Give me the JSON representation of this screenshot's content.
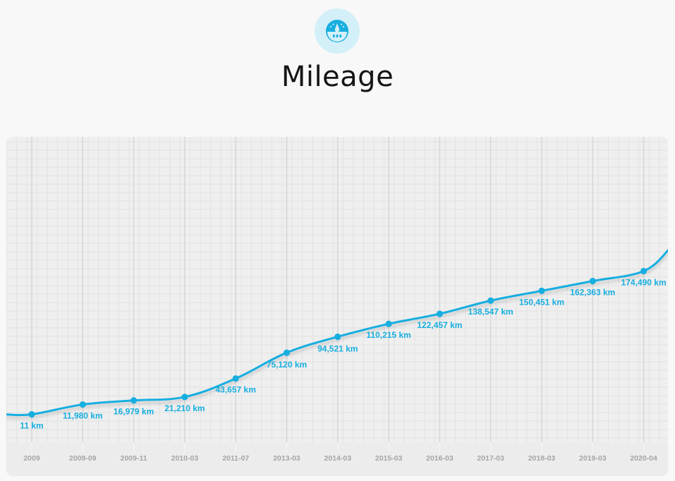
{
  "header": {
    "icon": "speedometer-icon",
    "title": "Mileage"
  },
  "colors": {
    "accent": "#17aee0",
    "icon_bg": "#d3f0f8",
    "card_bg": "#efefef",
    "axis_bg": "#ececec",
    "axis_text": "#a6a6a6",
    "page_bg": "#f8f8f8"
  },
  "chart_data": {
    "type": "line",
    "title": "Mileage",
    "xlabel": "",
    "ylabel": "",
    "unit": "km",
    "grid": true,
    "legend": "none",
    "categories": [
      "2009",
      "2009-09",
      "2009-11",
      "2010-03",
      "2011-07",
      "2013-03",
      "2014-03",
      "2015-03",
      "2016-03",
      "2017-03",
      "2018-03",
      "2019-03",
      "2020-04"
    ],
    "values": [
      11,
      11980,
      16979,
      21210,
      43657,
      75120,
      94521,
      110215,
      122457,
      138547,
      150451,
      162363,
      174490
    ],
    "labels": [
      "11 km",
      "11,980 km",
      "16,979 km",
      "21,210 km",
      "43,657 km",
      "75,120 km",
      "94,521 km",
      "110,215 km",
      "122,457 km",
      "138,547 km",
      "150,451 km",
      "162,363 km",
      "174,490 km"
    ]
  }
}
